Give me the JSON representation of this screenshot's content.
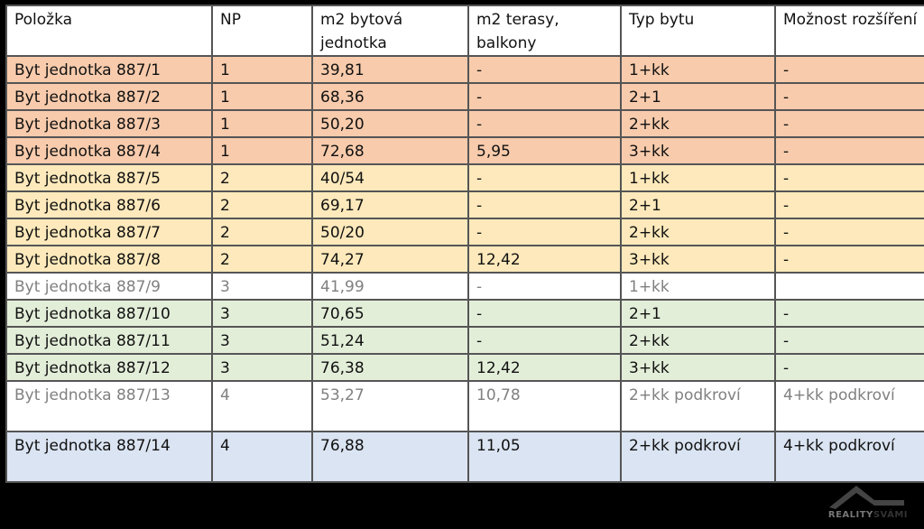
{
  "table": {
    "headers": [
      "Položka",
      "NP",
      "m2 bytová jednotka",
      "m2 terasy, balkony",
      "Typ bytu",
      "Možnost rozšíření"
    ],
    "rows": [
      {
        "color": "orange",
        "cells": [
          "Byt jednotka 887/1",
          "1",
          "39,81",
          "-",
          "1+kk",
          "-"
        ]
      },
      {
        "color": "orange",
        "cells": [
          "Byt jednotka 887/2",
          "1",
          "68,36",
          "-",
          "2+1",
          "-"
        ]
      },
      {
        "color": "orange",
        "cells": [
          "Byt jednotka 887/3",
          "1",
          "50,20",
          "-",
          "2+kk",
          "-"
        ]
      },
      {
        "color": "orange",
        "cells": [
          "Byt jednotka 887/4",
          "1",
          "72,68",
          "5,95",
          "3+kk",
          "-"
        ]
      },
      {
        "color": "yellow",
        "cells": [
          "Byt jednotka 887/5",
          "2",
          "40/54",
          "-",
          "1+kk",
          "-"
        ]
      },
      {
        "color": "yellow",
        "cells": [
          "Byt jednotka 887/6",
          "2",
          "69,17",
          "-",
          "2+1",
          "-"
        ]
      },
      {
        "color": "yellow",
        "cells": [
          "Byt jednotka 887/7",
          "2",
          "50/20",
          "-",
          "2+kk",
          "-"
        ]
      },
      {
        "color": "yellow",
        "cells": [
          "Byt jednotka 887/8",
          "2",
          "74,27",
          "12,42",
          "3+kk",
          "-"
        ]
      },
      {
        "color": "white",
        "cells": [
          "Byt jednotka 887/9",
          "3",
          "41,99",
          "-",
          "1+kk",
          ""
        ]
      },
      {
        "color": "green",
        "cells": [
          "Byt jednotka 887/10",
          "3",
          "70,65",
          "-",
          "2+1",
          "-"
        ]
      },
      {
        "color": "green",
        "cells": [
          "Byt jednotka 887/11",
          "3",
          "51,24",
          "-",
          "2+kk",
          "-"
        ]
      },
      {
        "color": "green",
        "cells": [
          "Byt jednotka 887/12",
          "3",
          "76,38",
          "12,42",
          "3+kk",
          "-"
        ]
      },
      {
        "color": "white",
        "cells": [
          "Byt jednotka 887/13",
          "4",
          "53,27",
          "10,78",
          "2+kk podkroví",
          "4+kk podkroví"
        ]
      },
      {
        "color": "blue",
        "cells": [
          "Byt jednotka 887/14",
          "4",
          "76,88",
          "11,05",
          "2+kk podkroví",
          "4+kk podkroví"
        ]
      }
    ]
  },
  "colors": {
    "orange": "#f7cbac",
    "yellow": "#fde9bb",
    "green": "#e3eed9",
    "blue": "#dae4f2",
    "white": "#ffffff"
  },
  "watermark": {
    "part1": "REALITY",
    "part2": "SVÁMI"
  }
}
